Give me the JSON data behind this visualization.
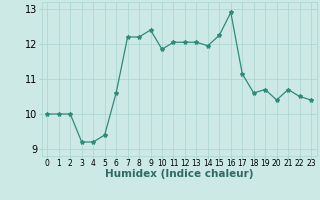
{
  "x": [
    0,
    1,
    2,
    3,
    4,
    5,
    6,
    7,
    8,
    9,
    10,
    11,
    12,
    13,
    14,
    15,
    16,
    17,
    18,
    19,
    20,
    21,
    22,
    23
  ],
  "y": [
    10.0,
    10.0,
    10.0,
    9.2,
    9.2,
    9.4,
    10.6,
    12.2,
    12.2,
    12.4,
    11.85,
    12.05,
    12.05,
    12.05,
    11.95,
    12.25,
    12.9,
    11.15,
    10.6,
    10.7,
    10.4,
    10.7,
    10.5,
    10.4
  ],
  "line_color": "#2e8b7a",
  "marker": "*",
  "marker_size": 3,
  "bg_color": "#cce9e5",
  "grid_color": "#aad4cf",
  "xlabel": "Humidex (Indice chaleur)",
  "ylim": [
    8.8,
    13.2
  ],
  "xlim": [
    -0.5,
    23.5
  ],
  "yticks": [
    9,
    10,
    11,
    12,
    13
  ],
  "xticks": [
    0,
    1,
    2,
    3,
    4,
    5,
    6,
    7,
    8,
    9,
    10,
    11,
    12,
    13,
    14,
    15,
    16,
    17,
    18,
    19,
    20,
    21,
    22,
    23
  ],
  "xlabel_fontsize": 7.5,
  "ytick_fontsize": 7,
  "xtick_fontsize": 5.5
}
